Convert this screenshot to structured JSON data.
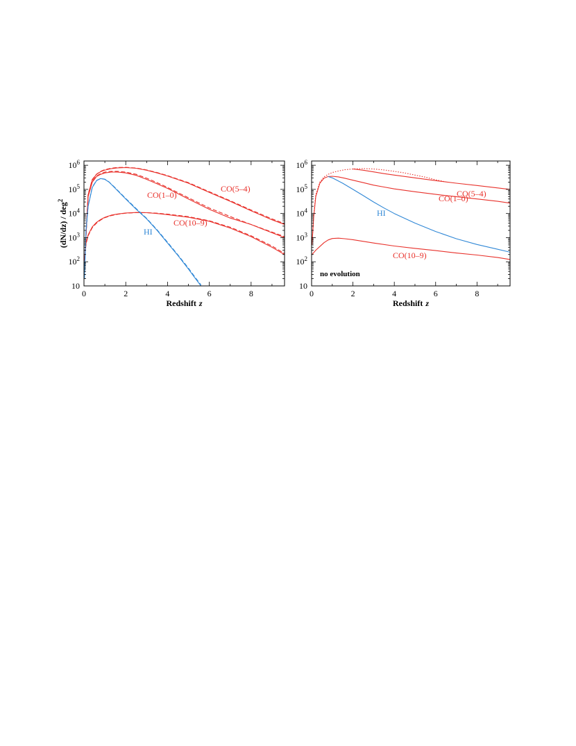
{
  "chart_data": [
    {
      "type": "line",
      "xlabel": "Redshift",
      "xlabel_italic": "z",
      "ylabel": "(dN/dz) / deg",
      "ylabel_sup": "2",
      "xlim": [
        0,
        9.6
      ],
      "ylim": [
        10,
        1500000
      ],
      "yscale": "log",
      "xticks": [
        0,
        2,
        4,
        6,
        8
      ],
      "xtick_labels": [
        "0",
        "2",
        "4",
        "6",
        "8"
      ],
      "yticks": [
        10,
        100,
        1000,
        10000,
        100000,
        1000000
      ],
      "ytick_labels": [
        {
          "base": "10",
          "exp": ""
        },
        {
          "base": "10",
          "exp": "2"
        },
        {
          "base": "10",
          "exp": "3"
        },
        {
          "base": "10",
          "exp": "4"
        },
        {
          "base": "10",
          "exp": "5"
        },
        {
          "base": "10",
          "exp": "6"
        }
      ],
      "grid": false,
      "annotation": "",
      "series": [
        {
          "name": "CO(5–4)",
          "color": "#e8302a",
          "style": "solid",
          "x": [
            0.05,
            0.2,
            0.4,
            0.6,
            0.8,
            1.0,
            1.3,
            1.6,
            2.0,
            2.5,
            3.0,
            3.5,
            4.0,
            5.0,
            6.0,
            7.0,
            8.0,
            9.0,
            9.6
          ],
          "y": [
            200,
            60000,
            250000,
            420000,
            540000,
            630000,
            720000,
            780000,
            800000,
            750000,
            620000,
            480000,
            360000,
            180000,
            75000,
            32000,
            13000,
            5500,
            3500
          ]
        },
        {
          "name": "",
          "color": "#e8302a",
          "style": "dashed",
          "x": [
            0.05,
            0.2,
            0.4,
            0.6,
            0.8,
            1.0,
            1.3,
            1.6,
            2.0,
            2.5,
            3.0,
            3.5,
            4.0,
            5.0,
            6.0,
            7.0,
            8.0,
            9.0,
            9.6
          ],
          "y": [
            200,
            62000,
            260000,
            430000,
            560000,
            660000,
            750000,
            810000,
            820000,
            770000,
            640000,
            500000,
            370000,
            190000,
            80000,
            34000,
            14000,
            6000,
            3800
          ]
        },
        {
          "name": "CO(1–0)",
          "color": "#e8302a",
          "style": "solid",
          "x": [
            0.05,
            0.2,
            0.4,
            0.6,
            0.8,
            1.0,
            1.3,
            1.6,
            2.0,
            2.5,
            3.0,
            3.5,
            4.0,
            5.0,
            6.0,
            7.0,
            8.0,
            9.0,
            9.6
          ],
          "y": [
            200,
            50000,
            200000,
            340000,
            420000,
            480000,
            520000,
            520000,
            480000,
            380000,
            260000,
            170000,
            110000,
            40000,
            15000,
            6500,
            3500,
            1600,
            1000
          ]
        },
        {
          "name": "",
          "color": "#e8302a",
          "style": "dashed",
          "x": [
            0.05,
            0.2,
            0.4,
            0.6,
            0.8,
            1.0,
            1.3,
            1.6,
            2.0,
            2.5,
            3.0,
            3.5,
            4.0,
            5.0,
            6.0,
            7.0,
            8.0,
            9.0,
            9.6
          ],
          "y": [
            200,
            55000,
            220000,
            360000,
            450000,
            520000,
            560000,
            560000,
            520000,
            420000,
            290000,
            190000,
            120000,
            45000,
            17000,
            7500,
            3500,
            1700,
            1100
          ]
        },
        {
          "name": "CO(10–9)",
          "color": "#e8302a",
          "style": "solid",
          "x": [
            0.02,
            0.1,
            0.2,
            0.4,
            0.6,
            0.8,
            1.0,
            1.3,
            1.6,
            2.0,
            2.5,
            3.0,
            3.5,
            4.0,
            5.0,
            6.0,
            7.0,
            8.0,
            9.0,
            9.6
          ],
          "y": [
            120,
            600,
            1300,
            2800,
            4300,
            5700,
            7000,
            8500,
            9500,
            10500,
            11000,
            10800,
            10000,
            9000,
            7000,
            4800,
            2500,
            1100,
            400,
            200
          ]
        },
        {
          "name": "",
          "color": "#e8302a",
          "style": "dashed",
          "x": [
            0.02,
            0.1,
            0.2,
            0.4,
            0.6,
            0.8,
            1.0,
            1.3,
            1.6,
            2.0,
            2.5,
            3.0,
            3.5,
            4.0,
            5.0,
            6.0,
            7.0,
            8.0,
            9.0,
            9.6
          ],
          "y": [
            110,
            550,
            1200,
            2600,
            4000,
            5400,
            6700,
            8200,
            9300,
            10300,
            10900,
            10900,
            10300,
            9400,
            7400,
            5000,
            2700,
            1200,
            450,
            220
          ]
        },
        {
          "name": "HI",
          "color": "#2f87d6",
          "style": "solid",
          "x": [
            0.02,
            0.1,
            0.2,
            0.4,
            0.6,
            0.8,
            1.0,
            1.2,
            1.5,
            2.0,
            2.5,
            3.0,
            3.5,
            4.0,
            4.5,
            5.0,
            5.3,
            5.6
          ],
          "y": [
            20,
            2000,
            20000,
            120000,
            230000,
            280000,
            260000,
            200000,
            110000,
            40000,
            15000,
            6000,
            2000,
            600,
            180,
            50,
            22,
            10
          ]
        },
        {
          "name": "",
          "color": "#2f87d6",
          "style": "dashed",
          "x": [
            0.02,
            0.1,
            0.2,
            0.4,
            0.6,
            0.8,
            1.0,
            1.2,
            1.5,
            2.0,
            2.5,
            3.0,
            3.5,
            4.0,
            4.5,
            5.0,
            5.3,
            5.6
          ],
          "y": [
            20,
            2100,
            21000,
            125000,
            235000,
            285000,
            265000,
            205000,
            115000,
            42000,
            16000,
            6300,
            2100,
            650,
            190,
            55,
            24,
            11
          ]
        }
      ]
    },
    {
      "type": "line",
      "xlabel": "Redshift",
      "xlabel_italic": "z",
      "ylabel": "",
      "ylabel_sup": "",
      "xlim": [
        0,
        9.6
      ],
      "ylim": [
        10,
        1500000
      ],
      "yscale": "log",
      "xticks": [
        0,
        2,
        4,
        6,
        8
      ],
      "xtick_labels": [
        "0",
        "2",
        "4",
        "6",
        "8"
      ],
      "yticks": [
        10,
        100,
        1000,
        10000,
        100000,
        1000000
      ],
      "ytick_labels": [
        {
          "base": "10",
          "exp": ""
        },
        {
          "base": "10",
          "exp": "2"
        },
        {
          "base": "10",
          "exp": "3"
        },
        {
          "base": "10",
          "exp": "4"
        },
        {
          "base": "10",
          "exp": "5"
        },
        {
          "base": "10",
          "exp": "6"
        }
      ],
      "grid": false,
      "annotation": "no evolution",
      "series": [
        {
          "name": "CO(5–4)",
          "color": "#e8302a",
          "style": "solid",
          "x": [
            2.0,
            2.5,
            3.0,
            3.5,
            4.0,
            5.0,
            6.0,
            7.0,
            8.0,
            9.0,
            9.6
          ],
          "y": [
            700000,
            620000,
            530000,
            450000,
            390000,
            300000,
            230000,
            180000,
            145000,
            115000,
            100000
          ]
        },
        {
          "name": "",
          "color": "#e8302a",
          "style": "dotted",
          "x": [
            0.02,
            0.1,
            0.2,
            0.4,
            0.6,
            0.8,
            1.0,
            1.3,
            1.6,
            2.0,
            2.5,
            3.0,
            3.5,
            4.0,
            4.5,
            5.0,
            5.5,
            6.0,
            6.5
          ],
          "y": [
            500,
            8000,
            60000,
            200000,
            330000,
            420000,
            500000,
            580000,
            650000,
            700000,
            730000,
            700000,
            640000,
            560000,
            480000,
            390000,
            320000,
            250000,
            205000
          ]
        },
        {
          "name": "CO(1–0)",
          "color": "#e8302a",
          "style": "solid",
          "x": [
            0.02,
            0.1,
            0.2,
            0.4,
            0.6,
            0.8,
            1.0,
            1.3,
            1.6,
            2.0,
            2.5,
            3.0,
            3.5,
            4.0,
            5.0,
            6.0,
            7.0,
            8.0,
            9.0,
            9.6
          ],
          "y": [
            500,
            7000,
            50000,
            180000,
            290000,
            340000,
            350000,
            330000,
            290000,
            240000,
            190000,
            150000,
            125000,
            105000,
            80000,
            62000,
            50000,
            40000,
            32000,
            27000
          ]
        },
        {
          "name": "CO(10–9)",
          "color": "#e8302a",
          "style": "solid",
          "x": [
            0.02,
            0.2,
            0.4,
            0.6,
            0.8,
            1.0,
            1.3,
            1.6,
            2.0,
            2.5,
            3.0,
            4.0,
            5.0,
            6.0,
            7.0,
            8.0,
            9.0,
            9.6
          ],
          "y": [
            200,
            300,
            430,
            620,
            800,
            920,
            950,
            900,
            820,
            700,
            600,
            450,
            360,
            290,
            230,
            190,
            150,
            125
          ]
        },
        {
          "name": "HI",
          "color": "#2f87d6",
          "style": "solid",
          "x": [
            0.8,
            1.0,
            1.5,
            2.0,
            2.5,
            3.0,
            3.5,
            4.0,
            5.0,
            6.0,
            7.0,
            8.0,
            9.0,
            9.6
          ],
          "y": [
            340000,
            300000,
            180000,
            100000,
            55000,
            30000,
            17000,
            10000,
            4000,
            1800,
            900,
            520,
            330,
            250
          ]
        }
      ]
    }
  ]
}
